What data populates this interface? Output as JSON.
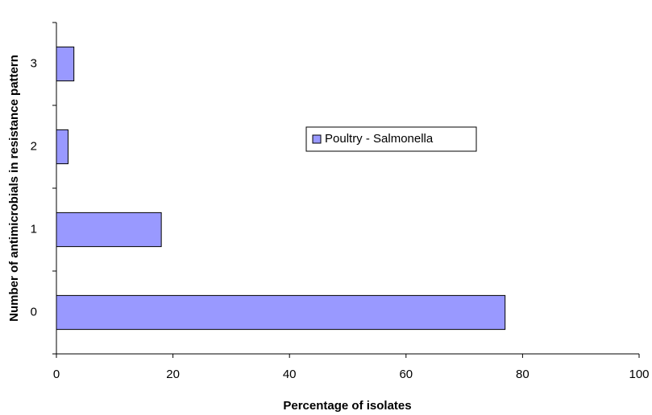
{
  "chart_data": {
    "type": "bar",
    "orientation": "horizontal",
    "categories": [
      "0",
      "1",
      "2",
      "3"
    ],
    "series": [
      {
        "name": "Poultry - Salmonella",
        "color": "#9999ff",
        "values": [
          77,
          18,
          2,
          3
        ]
      }
    ],
    "xlim": [
      0,
      100
    ],
    "xticks": [
      0,
      20,
      40,
      60,
      80,
      100
    ],
    "xlabel": "Percentage of isolates",
    "ylabel": "Number of antimicrobials in resistance pattern",
    "grid": false,
    "legend": "center-right"
  }
}
